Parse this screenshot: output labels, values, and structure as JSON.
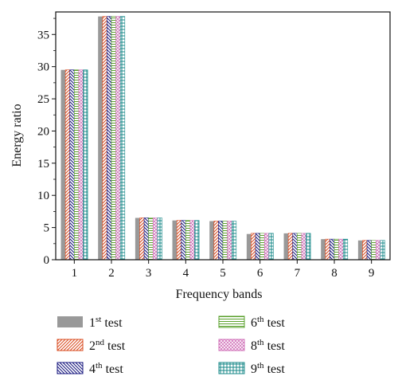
{
  "chart_data": {
    "type": "bar",
    "xlabel": "Frequency bands",
    "ylabel": "Energy ratio",
    "ylim": [
      0,
      38.5
    ],
    "yticks": [
      0,
      5,
      10,
      15,
      20,
      25,
      30,
      35
    ],
    "categories": [
      "1",
      "2",
      "3",
      "4",
      "5",
      "6",
      "7",
      "8",
      "9"
    ],
    "grid": false,
    "legend_position": "bottom",
    "series": [
      {
        "name": "1st test",
        "base": "1",
        "sup": "st",
        "suffix": " test",
        "fill": "solid",
        "color": "#999999",
        "values": [
          29.5,
          37.8,
          6.5,
          6.1,
          6.0,
          4.0,
          4.1,
          3.2,
          3.0
        ]
      },
      {
        "name": "2nd test",
        "base": "2",
        "sup": "nd",
        "suffix": " test",
        "fill": "hatch-forward",
        "color": "#d94a1e",
        "values": [
          29.5,
          37.8,
          6.5,
          6.1,
          6.0,
          4.1,
          4.1,
          3.2,
          3.0
        ]
      },
      {
        "name": "4th test",
        "base": "4",
        "sup": "th",
        "suffix": " test",
        "fill": "hatch-back",
        "color": "#1a1a80",
        "values": [
          29.5,
          37.8,
          6.5,
          6.1,
          6.0,
          4.1,
          4.1,
          3.2,
          3.0
        ]
      },
      {
        "name": "6th test",
        "base": "6",
        "sup": "th",
        "suffix": " test",
        "fill": "horizontal",
        "color": "#5aa02c",
        "values": [
          29.5,
          37.8,
          6.5,
          6.1,
          6.0,
          4.1,
          4.1,
          3.2,
          3.0
        ]
      },
      {
        "name": "8th test",
        "base": "8",
        "sup": "th",
        "suffix": " test",
        "fill": "crosshatch",
        "color": "#d070b8",
        "values": [
          29.5,
          37.8,
          6.5,
          6.1,
          6.0,
          4.1,
          4.1,
          3.2,
          3.0
        ]
      },
      {
        "name": "9th test",
        "base": "9",
        "sup": "th",
        "suffix": " test",
        "fill": "grid",
        "color": "#1a8a8a",
        "values": [
          29.5,
          37.8,
          6.5,
          6.1,
          6.0,
          4.1,
          4.1,
          3.2,
          3.0
        ]
      }
    ]
  }
}
